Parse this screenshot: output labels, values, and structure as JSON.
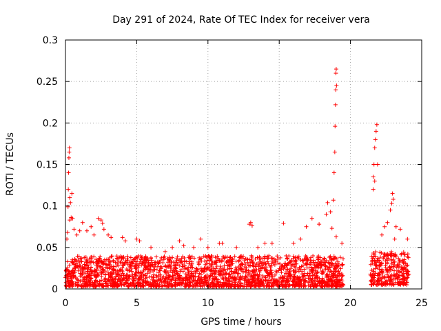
{
  "chart_data": {
    "type": "scatter",
    "title": "Day 291 of 2024, Rate Of TEC Index for receiver vera",
    "xlabel": "GPS time / hours",
    "ylabel": "ROTI / TECUs",
    "xlim": [
      0,
      25
    ],
    "ylim": [
      0,
      0.3
    ],
    "x_ticks": [
      0,
      5,
      10,
      15,
      20,
      25
    ],
    "x_tick_labels": [
      "0",
      "5",
      "10",
      "15",
      "20",
      "25"
    ],
    "y_ticks": [
      0,
      0.05,
      0.1,
      0.15,
      0.2,
      0.25,
      0.3
    ],
    "y_tick_labels": [
      "0",
      "0.05",
      "0.1",
      "0.15",
      "0.2",
      "0.25",
      "0.3"
    ],
    "grid": true,
    "marker": "plus",
    "series_color": "#ff0000",
    "points": [
      [
        0.15,
        0.068
      ],
      [
        0.18,
        0.099
      ],
      [
        0.2,
        0.12
      ],
      [
        0.22,
        0.14
      ],
      [
        0.24,
        0.158
      ],
      [
        0.26,
        0.165
      ],
      [
        0.28,
        0.17
      ],
      [
        0.3,
        0.11
      ],
      [
        0.35,
        0.104
      ],
      [
        0.4,
        0.086
      ],
      [
        0.45,
        0.115
      ],
      [
        0.5,
        0.085
      ],
      [
        0.1,
        0.06
      ],
      [
        0.3,
        0.083
      ],
      [
        0.6,
        0.072
      ],
      [
        0.8,
        0.065
      ],
      [
        1.0,
        0.07
      ],
      [
        1.2,
        0.08
      ],
      [
        1.5,
        0.07
      ],
      [
        1.8,
        0.075
      ],
      [
        2.0,
        0.065
      ],
      [
        2.3,
        0.085
      ],
      [
        2.5,
        0.083
      ],
      [
        2.6,
        0.079
      ],
      [
        2.7,
        0.072
      ],
      [
        3.0,
        0.065
      ],
      [
        3.2,
        0.062
      ],
      [
        4.0,
        0.062
      ],
      [
        4.2,
        0.058
      ],
      [
        5.0,
        0.06
      ],
      [
        5.2,
        0.058
      ],
      [
        6.0,
        0.05
      ],
      [
        7.0,
        0.045
      ],
      [
        7.5,
        0.05
      ],
      [
        8.0,
        0.058
      ],
      [
        8.3,
        0.052
      ],
      [
        9.0,
        0.05
      ],
      [
        9.5,
        0.06
      ],
      [
        10.0,
        0.05
      ],
      [
        10.8,
        0.055
      ],
      [
        11.0,
        0.055
      ],
      [
        12.0,
        0.05
      ],
      [
        12.9,
        0.078
      ],
      [
        13.0,
        0.08
      ],
      [
        13.1,
        0.076
      ],
      [
        13.5,
        0.05
      ],
      [
        14.0,
        0.055
      ],
      [
        14.5,
        0.055
      ],
      [
        15.3,
        0.079
      ],
      [
        16.0,
        0.055
      ],
      [
        16.5,
        0.06
      ],
      [
        16.9,
        0.075
      ],
      [
        17.3,
        0.085
      ],
      [
        17.8,
        0.078
      ],
      [
        18.3,
        0.09
      ],
      [
        18.4,
        0.104
      ],
      [
        18.6,
        0.093
      ],
      [
        18.8,
        0.107
      ],
      [
        18.85,
        0.14
      ],
      [
        18.9,
        0.165
      ],
      [
        18.92,
        0.196
      ],
      [
        18.95,
        0.222
      ],
      [
        18.97,
        0.24
      ],
      [
        19.0,
        0.265
      ],
      [
        18.98,
        0.26
      ],
      [
        19.02,
        0.245
      ],
      [
        18.7,
        0.073
      ],
      [
        19.0,
        0.063
      ],
      [
        19.4,
        0.055
      ],
      [
        21.6,
        0.12
      ],
      [
        21.65,
        0.15
      ],
      [
        21.7,
        0.17
      ],
      [
        21.75,
        0.18
      ],
      [
        21.8,
        0.19
      ],
      [
        21.85,
        0.198
      ],
      [
        21.9,
        0.15
      ],
      [
        21.6,
        0.135
      ],
      [
        21.7,
        0.13
      ],
      [
        22.2,
        0.065
      ],
      [
        22.4,
        0.075
      ],
      [
        22.6,
        0.08
      ],
      [
        22.8,
        0.095
      ],
      [
        22.9,
        0.103
      ],
      [
        22.95,
        0.115
      ],
      [
        23.0,
        0.108
      ],
      [
        23.1,
        0.06
      ],
      [
        23.2,
        0.075
      ],
      [
        23.5,
        0.072
      ],
      [
        24.0,
        0.06
      ]
    ],
    "dense_bands": [
      {
        "x_start": 0.0,
        "x_end": 19.5,
        "y_low": 0.003,
        "y_high": 0.04
      },
      {
        "x_start": 21.4,
        "x_end": 24.1,
        "y_low": 0.005,
        "y_high": 0.045
      }
    ]
  }
}
